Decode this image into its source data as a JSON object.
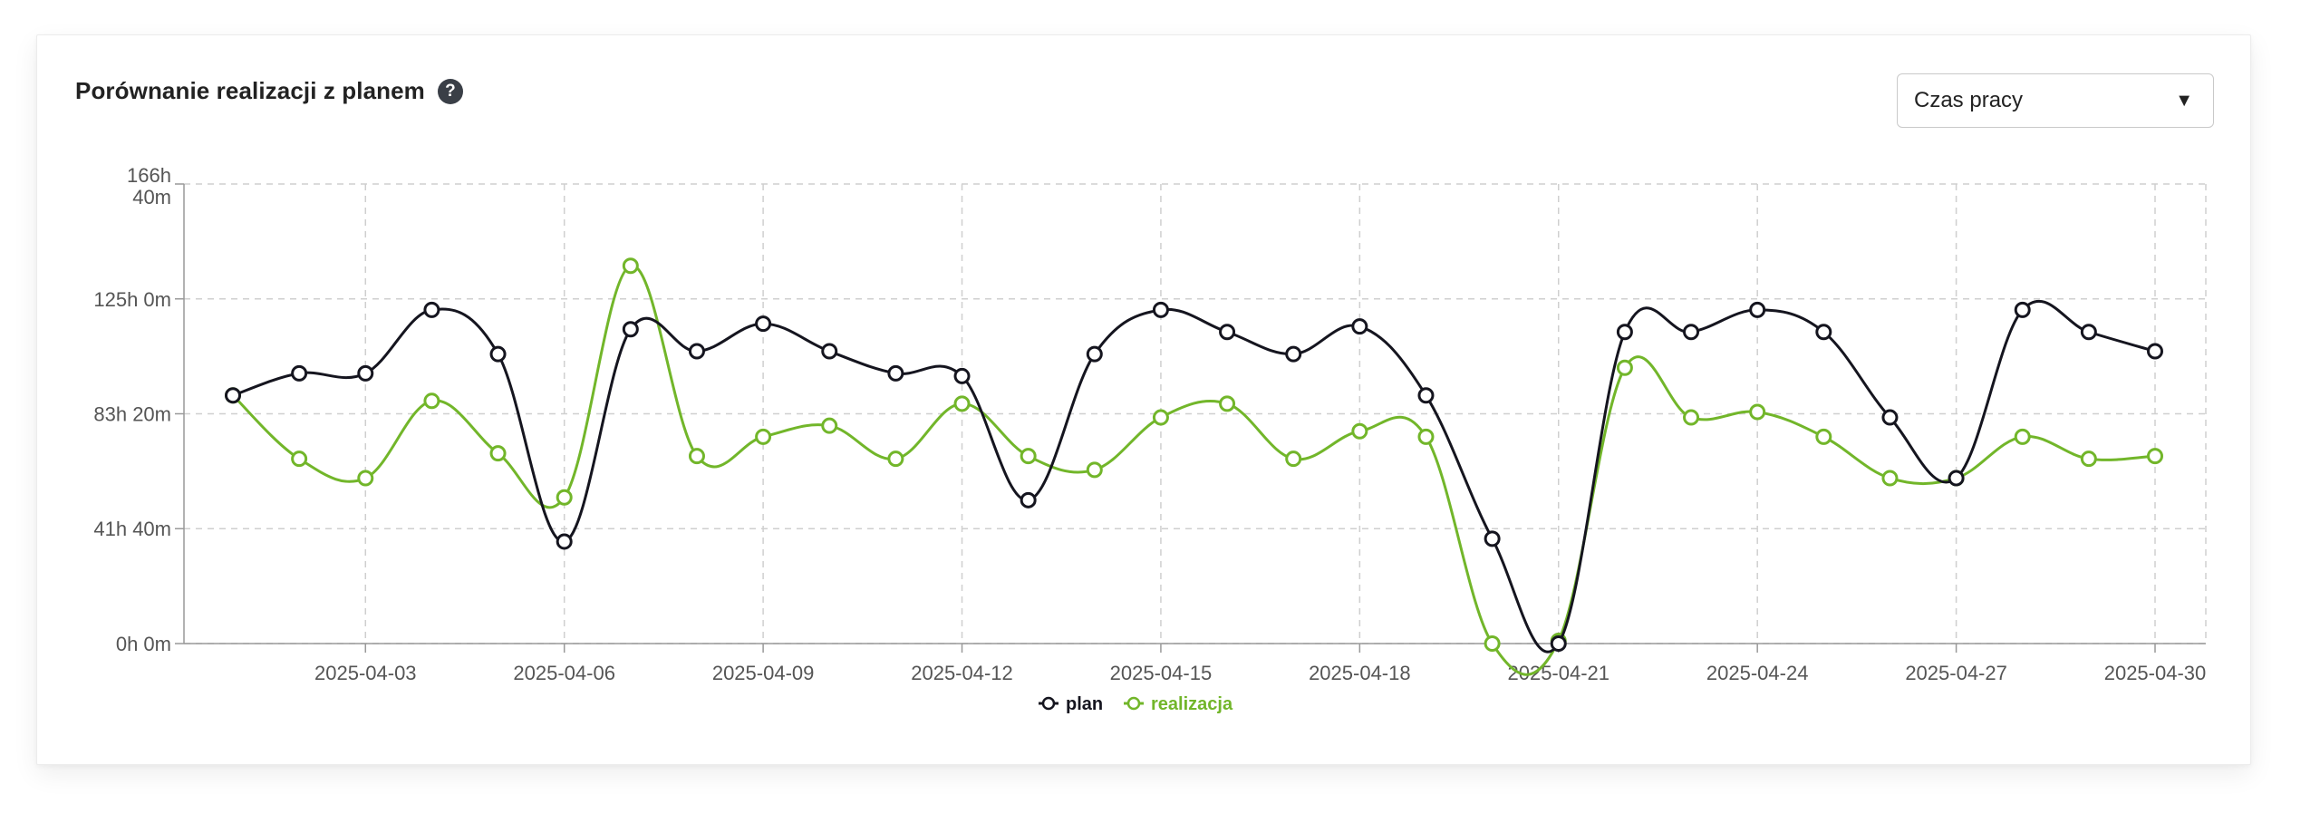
{
  "header": {
    "title": "Porównanie realizacji z planem",
    "help_icon": "question-circle-icon",
    "select_value": "Czas pracy",
    "select_caret": "▼"
  },
  "colors": {
    "plan": "#15151f",
    "realizacja": "#72b62a",
    "grid": "#cfcfcf",
    "axis": "#999999"
  },
  "chart_data": {
    "type": "line",
    "y_unit": "hours",
    "ylim": [
      0,
      166.667
    ],
    "yticks": [
      {
        "value": 0,
        "label": "0h 0m"
      },
      {
        "value": 41.667,
        "label": "41h 40m"
      },
      {
        "value": 83.333,
        "label": "83h 20m"
      },
      {
        "value": 125,
        "label": "125h 0m"
      },
      {
        "value": 166.667,
        "label": "166h 40m"
      }
    ],
    "x": [
      "2025-04-01",
      "2025-04-02",
      "2025-04-03",
      "2025-04-04",
      "2025-04-05",
      "2025-04-06",
      "2025-04-07",
      "2025-04-08",
      "2025-04-09",
      "2025-04-10",
      "2025-04-11",
      "2025-04-12",
      "2025-04-13",
      "2025-04-14",
      "2025-04-15",
      "2025-04-16",
      "2025-04-17",
      "2025-04-18",
      "2025-04-19",
      "2025-04-20",
      "2025-04-21",
      "2025-04-22",
      "2025-04-23",
      "2025-04-24",
      "2025-04-25",
      "2025-04-26",
      "2025-04-27",
      "2025-04-28",
      "2025-04-29",
      "2025-04-30"
    ],
    "xticks": [
      "2025-04-03",
      "2025-04-06",
      "2025-04-09",
      "2025-04-12",
      "2025-04-15",
      "2025-04-18",
      "2025-04-21",
      "2025-04-24",
      "2025-04-27",
      "2025-04-30"
    ],
    "grid": true,
    "legend_position": "bottom-center",
    "series": [
      {
        "name": "plan",
        "color_key": "plan",
        "values": [
          90,
          98,
          98,
          121,
          105,
          37,
          114,
          106,
          116,
          106,
          98,
          97,
          52,
          105,
          121,
          113,
          105,
          115,
          90,
          38,
          0,
          113,
          113,
          121,
          113,
          82,
          60,
          121,
          113,
          106
        ]
      },
      {
        "name": "realizacja",
        "color_key": "realizacja",
        "values": [
          90,
          67,
          60,
          88,
          69,
          53,
          137,
          68,
          75,
          79,
          67,
          87,
          68,
          63,
          82,
          87,
          67,
          77,
          75,
          0,
          1,
          100,
          82,
          84,
          75,
          60,
          60,
          75,
          67,
          68
        ]
      }
    ]
  }
}
